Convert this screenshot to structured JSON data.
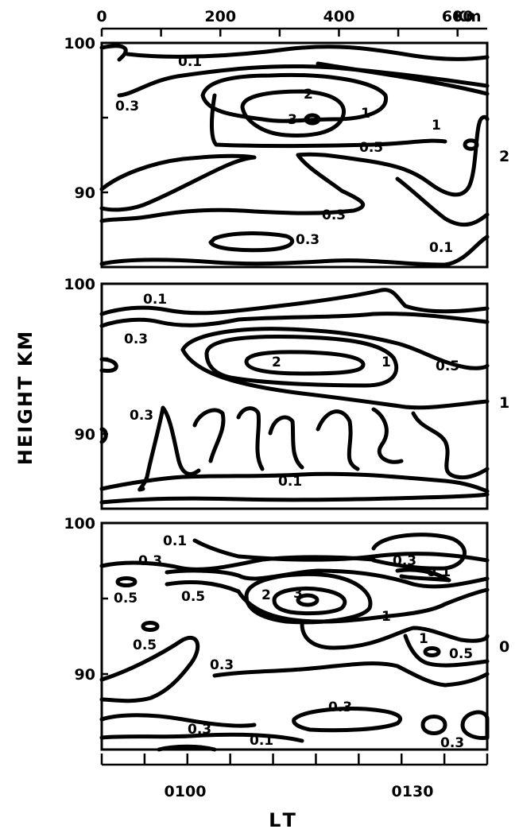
{
  "chart_data": {
    "type": "contour",
    "xlabel": "LT",
    "ylabel": "HEIGHT KM",
    "top_axis": {
      "unit_label": "Km",
      "ticks": [
        0,
        200,
        400,
        600
      ],
      "tick_labels": [
        "0",
        "200",
        "400",
        "600"
      ],
      "range_km": [
        0,
        650
      ]
    },
    "bottom_axis": {
      "tick_labels": [
        "0100",
        "0130"
      ],
      "range_minutes_after_0040": [
        0,
        45
      ]
    },
    "y_range_km": [
      85,
      100
    ],
    "y_tick_labels": [
      "100",
      "90"
    ],
    "panels": [
      {
        "id": "2",
        "contour_labels": [
          {
            "text": "0.1",
            "x": 235,
            "y": 97.7
          },
          {
            "text": "0.3",
            "x": 25,
            "y": 96.4
          },
          {
            "text": "2",
            "x": 370,
            "y": 96.3
          },
          {
            "text": "3",
            "x": 340,
            "y": 95.0
          },
          {
            "text": "1",
            "x": 465,
            "y": 95.6
          },
          {
            "text": "1",
            "x": 590,
            "y": 94.1
          },
          {
            "text": "0.5",
            "x": 450,
            "y": 93.0
          },
          {
            "text": "0.3",
            "x": 395,
            "y": 88.6
          },
          {
            "text": "0.3",
            "x": 345,
            "y": 87.1
          },
          {
            "text": "0.1",
            "x": 555,
            "y": 86.6
          }
        ]
      },
      {
        "id": "1",
        "contour_labels": [
          {
            "text": "0.1",
            "x": 115,
            "y": 98.8
          },
          {
            "text": "0.3",
            "x": 70,
            "y": 96.6
          },
          {
            "text": "2",
            "x": 315,
            "y": 94.9
          },
          {
            "text": "1",
            "x": 525,
            "y": 94.8
          },
          {
            "text": "0.5",
            "x": 595,
            "y": 94.4
          },
          {
            "text": "0.3",
            "x": 80,
            "y": 91.1
          },
          {
            "text": "0.1",
            "x": 320,
            "y": 87.0
          }
        ]
      },
      {
        "id": "0",
        "contour_labels": [
          {
            "text": "0.1",
            "x": 140,
            "y": 98.4
          },
          {
            "text": "0.3",
            "x": 95,
            "y": 97.2
          },
          {
            "text": "0.3",
            "x": 545,
            "y": 97.2
          },
          {
            "text": "0.1",
            "x": 590,
            "y": 96.6
          },
          {
            "text": "0.5",
            "x": 45,
            "y": 95.2
          },
          {
            "text": "0.5",
            "x": 185,
            "y": 95.2
          },
          {
            "text": "2",
            "x": 310,
            "y": 95.2
          },
          {
            "text": "3",
            "x": 350,
            "y": 95.2
          },
          {
            "text": "1",
            "x": 520,
            "y": 94.1
          },
          {
            "text": "0.5",
            "x": 80,
            "y": 92.8
          },
          {
            "text": "1",
            "x": 600,
            "y": 92.8
          },
          {
            "text": "0.5",
            "x": 655,
            "y": 92.0
          },
          {
            "text": "0.3",
            "x": 220,
            "y": 90.6
          },
          {
            "text": "0.3",
            "x": 445,
            "y": 87.7
          },
          {
            "text": "0.3",
            "x": 170,
            "y": 86.2
          },
          {
            "text": "0.1",
            "x": 305,
            "y": 85.7
          },
          {
            "text": "0.3",
            "x": 625,
            "y": 85.7
          }
        ]
      }
    ],
    "grid": false,
    "line_color": "#000000",
    "background_color": "#ffffff"
  }
}
